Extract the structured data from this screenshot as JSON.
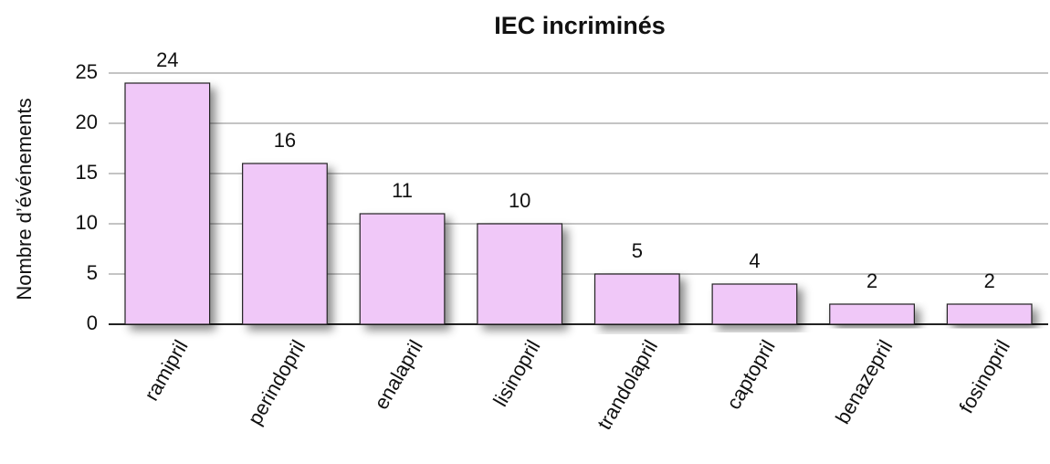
{
  "chart_data": {
    "type": "bar",
    "title": "IEC incriminés",
    "y_label": "Nombre d’événements",
    "categories": [
      "ramipril",
      "perindopril",
      "enalapril",
      "lisinopril",
      "trandolapril",
      "captopril",
      "benazepril",
      "fosinopril"
    ],
    "values": [
      24,
      16,
      11,
      10,
      5,
      4,
      2,
      2
    ],
    "color": "#f0c8f8",
    "ylim": [
      0,
      25
    ],
    "yticks": [
      0,
      5,
      10,
      15,
      20,
      25
    ],
    "grid": true
  }
}
